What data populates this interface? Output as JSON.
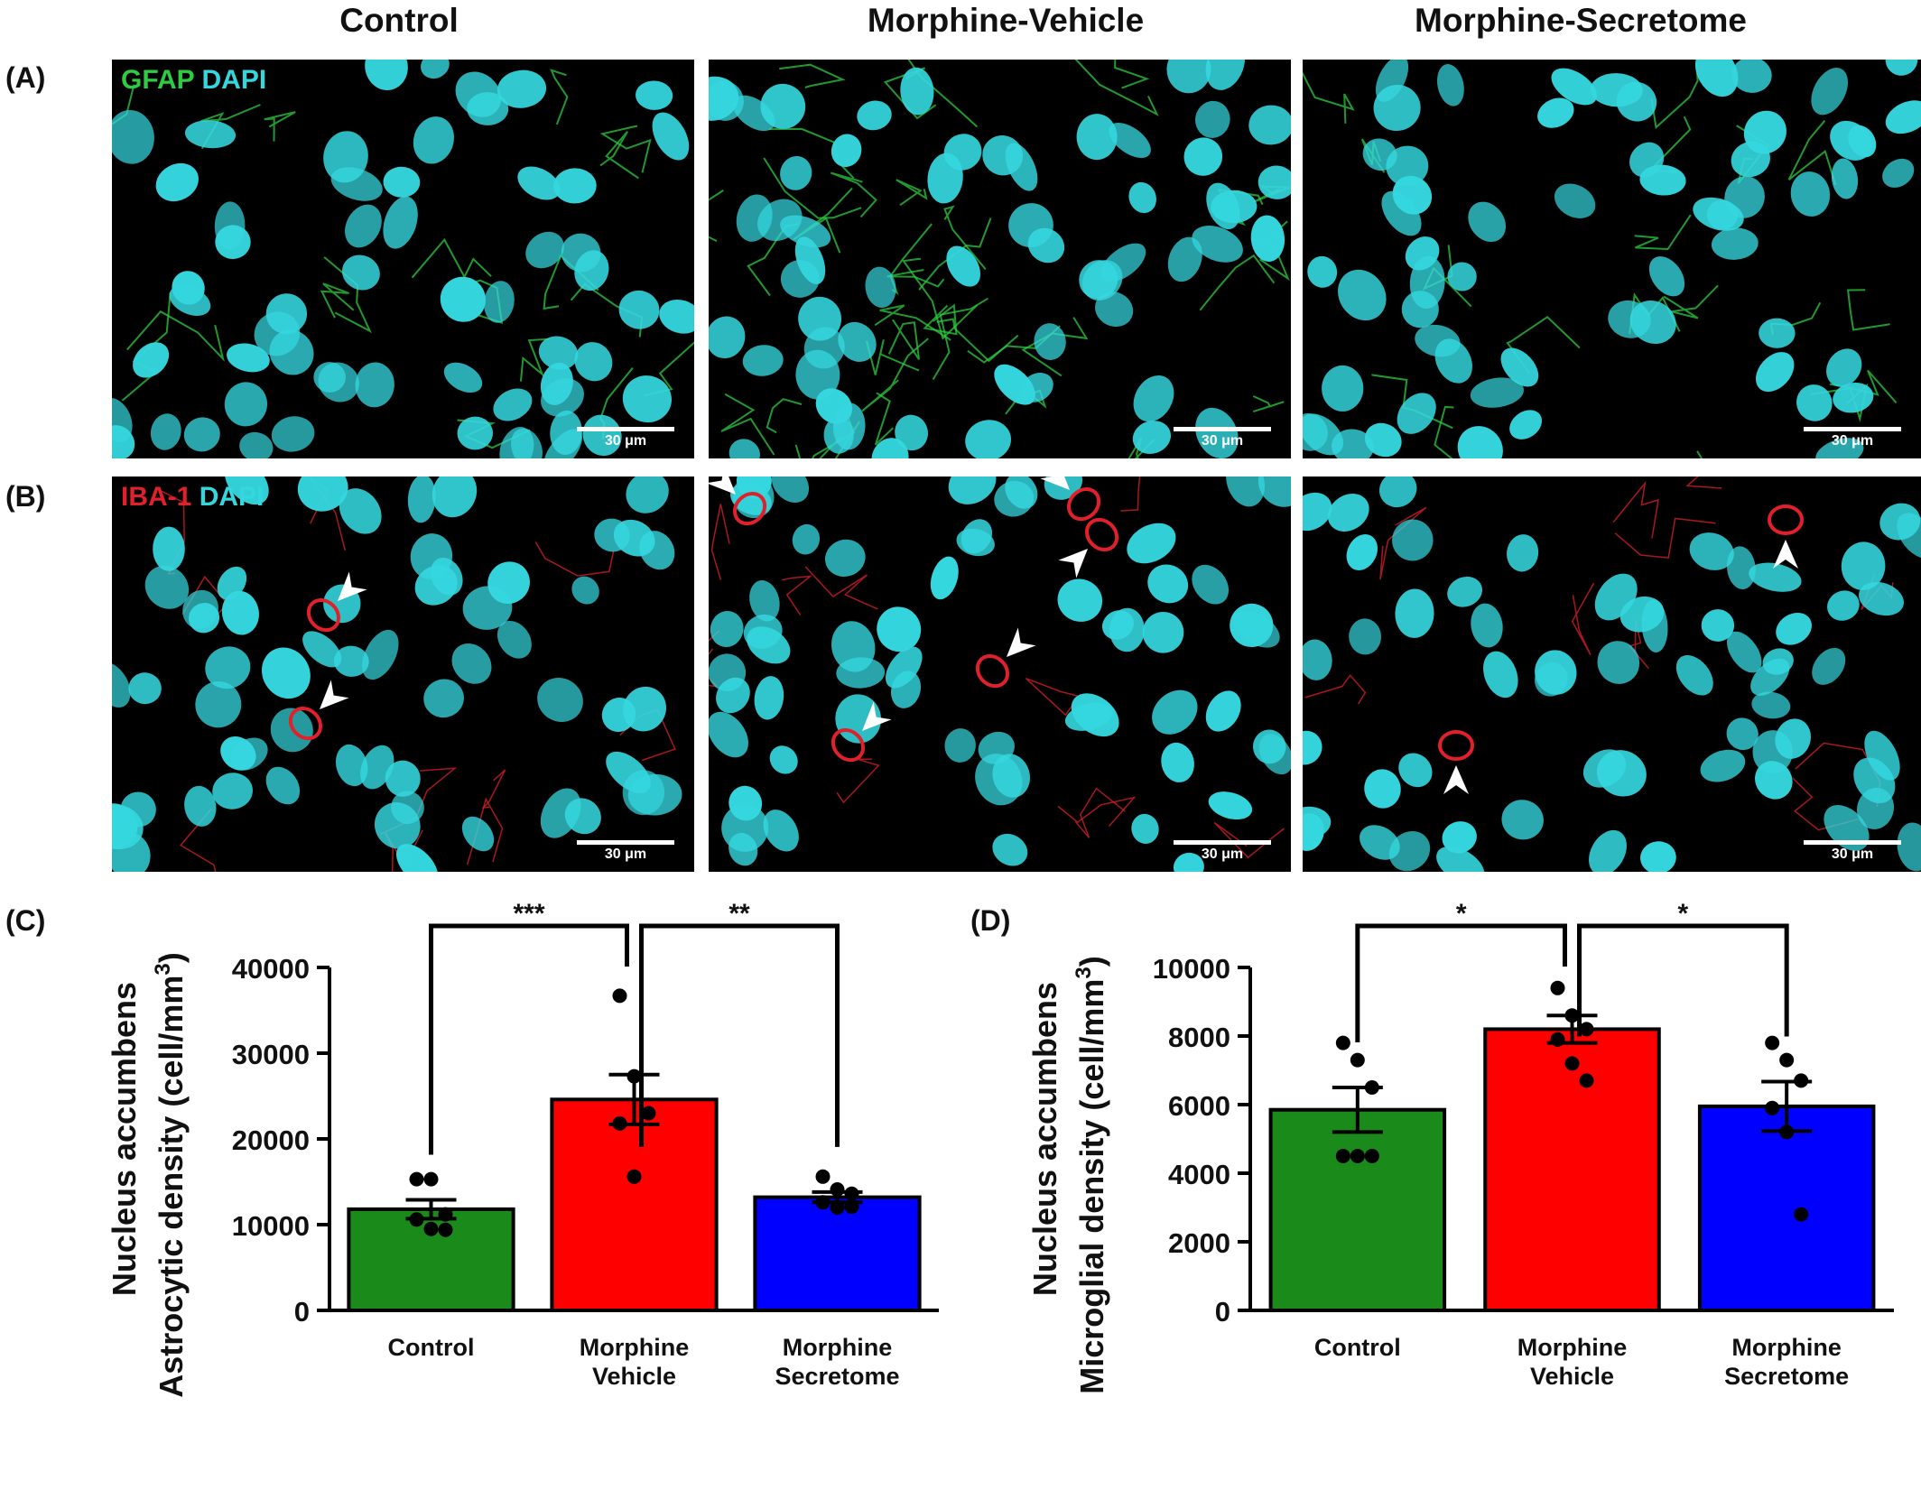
{
  "columns": [
    "Control",
    "Morphine-Vehicle",
    "Morphine-Secretome"
  ],
  "panel_labels": {
    "a": "(A)",
    "b": "(B)",
    "c": "(C)",
    "d": "(D)"
  },
  "row_a": {
    "stain_marker": "GFAP",
    "stain_nuclear": "DAPI",
    "marker_color": "#2ecc40"
  },
  "row_b": {
    "stain_marker": "IBA-1",
    "stain_nuclear": "DAPI",
    "marker_color": "#e0202a"
  },
  "scale_label": "30 μm",
  "colors": {
    "control": "#1a8a1a",
    "vehicle": "#ff0000",
    "secretome": "#0000ff",
    "nuclei": "#35d7df"
  },
  "chart_data": [
    {
      "type": "bar",
      "panel": "(C)",
      "ylabel_line1": "Nucleus accumbens",
      "ylabel_line2": "Astrocytic density",
      "ylabel_unit": "(cell/mm",
      "ylabel_unit_sup": "3",
      "ylabel_unit_close": ")",
      "categories": [
        [
          "Control"
        ],
        [
          "Morphine",
          "Vehicle"
        ],
        [
          "Morphine",
          "Secretome"
        ]
      ],
      "values": [
        11800,
        24600,
        13200
      ],
      "sem": [
        1100,
        2900,
        600
      ],
      "points": [
        [
          15300,
          15300,
          11200,
          10600,
          9500,
          9400
        ],
        [
          36700,
          27300,
          23000,
          21800,
          15600
        ],
        [
          15600,
          14100,
          13600,
          12600,
          12000,
          12100
        ]
      ],
      "ylim": [
        0,
        40000
      ],
      "yticks": [
        0,
        10000,
        20000,
        30000,
        40000
      ],
      "significance": [
        {
          "from": 0,
          "to": 1,
          "label": "***"
        },
        {
          "from": 1,
          "to": 2,
          "label": "**"
        }
      ]
    },
    {
      "type": "bar",
      "panel": "(D)",
      "ylabel_line1": "Nucleus accumbens",
      "ylabel_line2": "Microglial density",
      "ylabel_unit": "(cell/mm",
      "ylabel_unit_sup": "3",
      "ylabel_unit_close": ")",
      "categories": [
        [
          "Control"
        ],
        [
          "Morphine",
          "Vehicle"
        ],
        [
          "Morphine",
          "Secretome"
        ]
      ],
      "values": [
        5850,
        8200,
        5950
      ],
      "sem": [
        650,
        400,
        720
      ],
      "points": [
        [
          7800,
          7300,
          6500,
          4500,
          4500,
          4500
        ],
        [
          9400,
          8600,
          8200,
          7900,
          7200,
          6700
        ],
        [
          7800,
          7300,
          6700,
          5900,
          5200,
          2800
        ]
      ],
      "ylim": [
        0,
        10000
      ],
      "yticks": [
        0,
        2000,
        4000,
        6000,
        8000,
        10000
      ],
      "significance": [
        {
          "from": 0,
          "to": 1,
          "label": "*"
        },
        {
          "from": 1,
          "to": 2,
          "label": "*"
        }
      ]
    }
  ]
}
